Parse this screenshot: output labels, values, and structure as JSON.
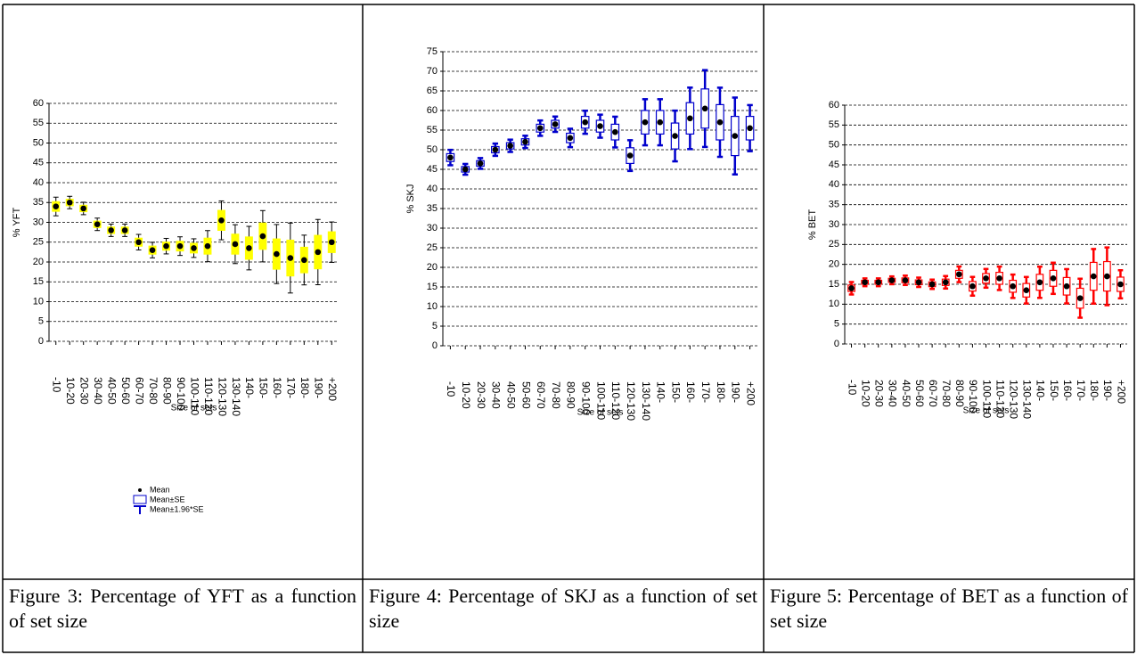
{
  "chart_data": [
    {
      "type": "box",
      "y_label": "% YFT",
      "x_label": "Size of sets",
      "caption": "Figure 3: Percentage of YFT as a function of set size",
      "categories": [
        "-10",
        "10-20",
        "20-30",
        "30-40",
        "40-50",
        "50-60",
        "60-70",
        "70-80",
        "80-90",
        "90-100",
        "100-110",
        "110-120",
        "120-130",
        "130-140",
        "140-",
        "150-",
        "160-",
        "170-",
        "180-",
        "190-",
        "+200"
      ],
      "values": [
        34,
        35,
        33.5,
        29.5,
        28,
        28,
        25,
        23,
        24,
        24,
        23.5,
        24,
        30.5,
        24.5,
        23.5,
        26.5,
        22,
        21,
        20.5,
        22.5,
        25
      ],
      "se": [
        1.2,
        0.8,
        0.8,
        0.8,
        0.8,
        0.8,
        1,
        1,
        1,
        1.2,
        1.2,
        2,
        2.5,
        2.5,
        2.8,
        3.3,
        3.8,
        4.5,
        3.2,
        4.2,
        2.6
      ],
      "box_fill": "#ffff00",
      "color": "#ffff00",
      "whisker_color": "#000000",
      "ylim": [
        0,
        60
      ],
      "yticks": [
        0,
        5,
        10,
        15,
        20,
        25,
        30,
        35,
        40,
        45,
        50,
        55,
        60
      ],
      "grid": true,
      "legend": [
        "Mean",
        "Mean±SE",
        "Mean±1.96*SE"
      ],
      "legend_color": "#0000cc"
    },
    {
      "type": "box",
      "y_label": "% SKJ",
      "x_label": "Size of sets",
      "caption": "Figure 4: Percentage of SKJ as a function of set size",
      "categories": [
        "-10",
        "10-20",
        "20-30",
        "30-40",
        "40-50",
        "50-60",
        "60-70",
        "70-80",
        "80-90",
        "90-100",
        "100-110",
        "110-120",
        "120-130",
        "130-140",
        "140-",
        "150-",
        "160-",
        "170-",
        "180-",
        "190-",
        "+200"
      ],
      "values": [
        48,
        45,
        46.5,
        50,
        51,
        52,
        55.5,
        56.5,
        53,
        57,
        56,
        54.5,
        48.5,
        57,
        57,
        53.5,
        58,
        60.5,
        57,
        53.5,
        55.5
      ],
      "se": [
        1,
        0.7,
        0.7,
        0.8,
        0.8,
        0.8,
        1,
        1,
        1.2,
        1.5,
        1.5,
        2,
        2,
        3,
        3,
        3.3,
        4,
        5,
        4.5,
        5,
        3
      ],
      "box_fill": "#ffffff",
      "color": "#0000cc",
      "whisker_color": "#0000cc",
      "ylim": [
        0,
        75
      ],
      "yticks": [
        0,
        5,
        10,
        15,
        20,
        25,
        30,
        35,
        40,
        45,
        50,
        55,
        60,
        65,
        70,
        75
      ],
      "grid": true
    },
    {
      "type": "box",
      "y_label": "% BET",
      "x_label": "Size of sets",
      "caption": "Figure 5: Percentage of BET as a function of set size",
      "categories": [
        "-10",
        "10-20",
        "20-30",
        "30-40",
        "40-50",
        "50-60",
        "60-70",
        "70-80",
        "80-90",
        "90-100",
        "100-110",
        "110-120",
        "120-130",
        "130-140",
        "140-",
        "150-",
        "160-",
        "170-",
        "180-",
        "190-",
        "+200"
      ],
      "values": [
        14,
        15.5,
        15.5,
        16,
        16,
        15.5,
        15,
        15.5,
        17.5,
        14.5,
        16.5,
        16.5,
        14.5,
        13.5,
        15.5,
        16.5,
        14.5,
        11.5,
        17,
        17,
        15
      ],
      "se": [
        0.8,
        0.5,
        0.5,
        0.5,
        0.6,
        0.6,
        0.6,
        0.8,
        1,
        1.2,
        1.2,
        1.5,
        1.5,
        1.7,
        2,
        2,
        2.2,
        2.5,
        3.5,
        3.7,
        1.8
      ],
      "box_fill": "#ffffff",
      "color": "#ff0000",
      "whisker_color": "#ff0000",
      "ylim": [
        0,
        60
      ],
      "yticks": [
        0,
        5,
        10,
        15,
        20,
        25,
        30,
        35,
        40,
        45,
        50,
        55,
        60
      ],
      "grid": true
    }
  ]
}
